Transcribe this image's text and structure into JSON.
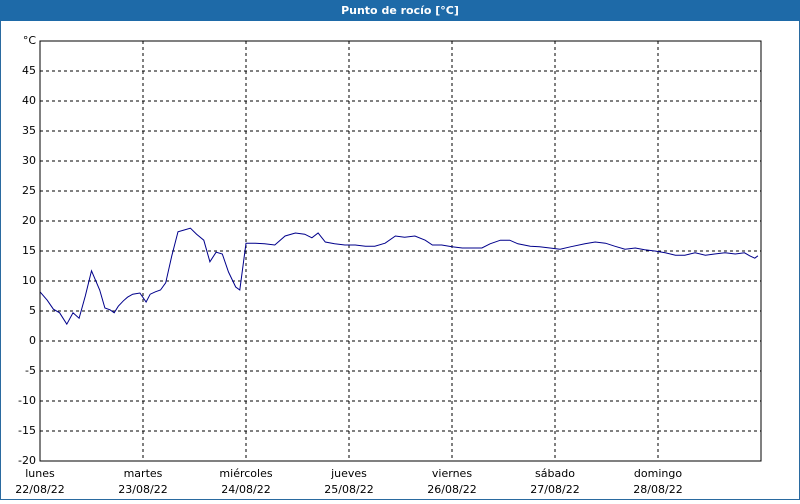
{
  "chart_data": {
    "type": "line",
    "title": "Punto de rocío [°C]",
    "xlim": [
      0,
      7
    ],
    "ylim": [
      -20,
      50
    ],
    "grid": true,
    "xticks": [
      {
        "value": 0,
        "label": "lunes",
        "date": "22/08/22"
      },
      {
        "value": 1,
        "label": "martes",
        "date": "23/08/22"
      },
      {
        "value": 2,
        "label": "miércoles",
        "date": "24/08/22"
      },
      {
        "value": 3,
        "label": "jueves",
        "date": "25/08/22"
      },
      {
        "value": 4,
        "label": "viernes",
        "date": "26/08/22"
      },
      {
        "value": 5,
        "label": "sábado",
        "date": "27/08/22"
      },
      {
        "value": 6,
        "label": "domingo",
        "date": "28/08/22"
      }
    ],
    "yticks": [
      -20,
      -15,
      -10,
      -5,
      0,
      5,
      10,
      15,
      20,
      25,
      30,
      35,
      40,
      45,
      {
        "value": 50,
        "label": "°C"
      }
    ],
    "series": [
      {
        "color": "#00008b",
        "x": [
          0.0,
          0.07,
          0.13,
          0.19,
          0.26,
          0.32,
          0.38,
          0.44,
          0.5,
          0.58,
          0.63,
          0.68,
          0.72,
          0.76,
          0.81,
          0.85,
          0.9,
          0.97,
          1.03,
          1.07,
          1.12,
          1.17,
          1.22,
          1.28,
          1.34,
          1.4,
          1.46,
          1.52,
          1.59,
          1.65,
          1.71,
          1.77,
          1.83,
          1.9,
          1.94,
          2.0,
          2.09,
          2.18,
          2.28,
          2.38,
          2.48,
          2.57,
          2.64,
          2.7,
          2.77,
          2.86,
          2.96,
          3.06,
          3.16,
          3.25,
          3.35,
          3.45,
          3.54,
          3.64,
          3.74,
          3.81,
          3.9,
          4.0,
          4.1,
          4.19,
          4.29,
          4.37,
          4.47,
          4.56,
          4.64,
          4.76,
          4.85,
          4.95,
          5.05,
          5.15,
          5.29,
          5.39,
          5.49,
          5.58,
          5.68,
          5.78,
          5.87,
          5.97,
          6.07,
          6.17,
          6.26,
          6.36,
          6.46,
          6.55,
          6.65,
          6.75,
          6.84,
          6.89,
          6.94,
          6.97
        ],
        "values": [
          8.2,
          6.8,
          5.3,
          4.7,
          2.8,
          4.7,
          3.8,
          7.5,
          11.7,
          8.5,
          5.5,
          5.2,
          4.7,
          5.8,
          6.7,
          7.3,
          7.8,
          8.0,
          6.5,
          7.8,
          8.2,
          8.5,
          9.7,
          14.2,
          18.2,
          18.5,
          18.8,
          17.8,
          16.8,
          13.2,
          14.8,
          14.5,
          11.5,
          9.0,
          8.5,
          16.3,
          16.3,
          16.2,
          16.0,
          17.5,
          18.0,
          17.8,
          17.2,
          18.0,
          16.5,
          16.2,
          16.0,
          16.0,
          15.8,
          15.8,
          16.3,
          17.5,
          17.3,
          17.5,
          16.8,
          16.0,
          16.0,
          15.7,
          15.5,
          15.5,
          15.5,
          16.2,
          16.8,
          16.8,
          16.2,
          15.8,
          15.7,
          15.5,
          15.3,
          15.7,
          16.2,
          16.5,
          16.3,
          15.8,
          15.3,
          15.5,
          15.2,
          15.0,
          14.7,
          14.3,
          14.3,
          14.7,
          14.3,
          14.5,
          14.7,
          14.5,
          14.7,
          14.2,
          13.8,
          14.2
        ]
      }
    ]
  }
}
